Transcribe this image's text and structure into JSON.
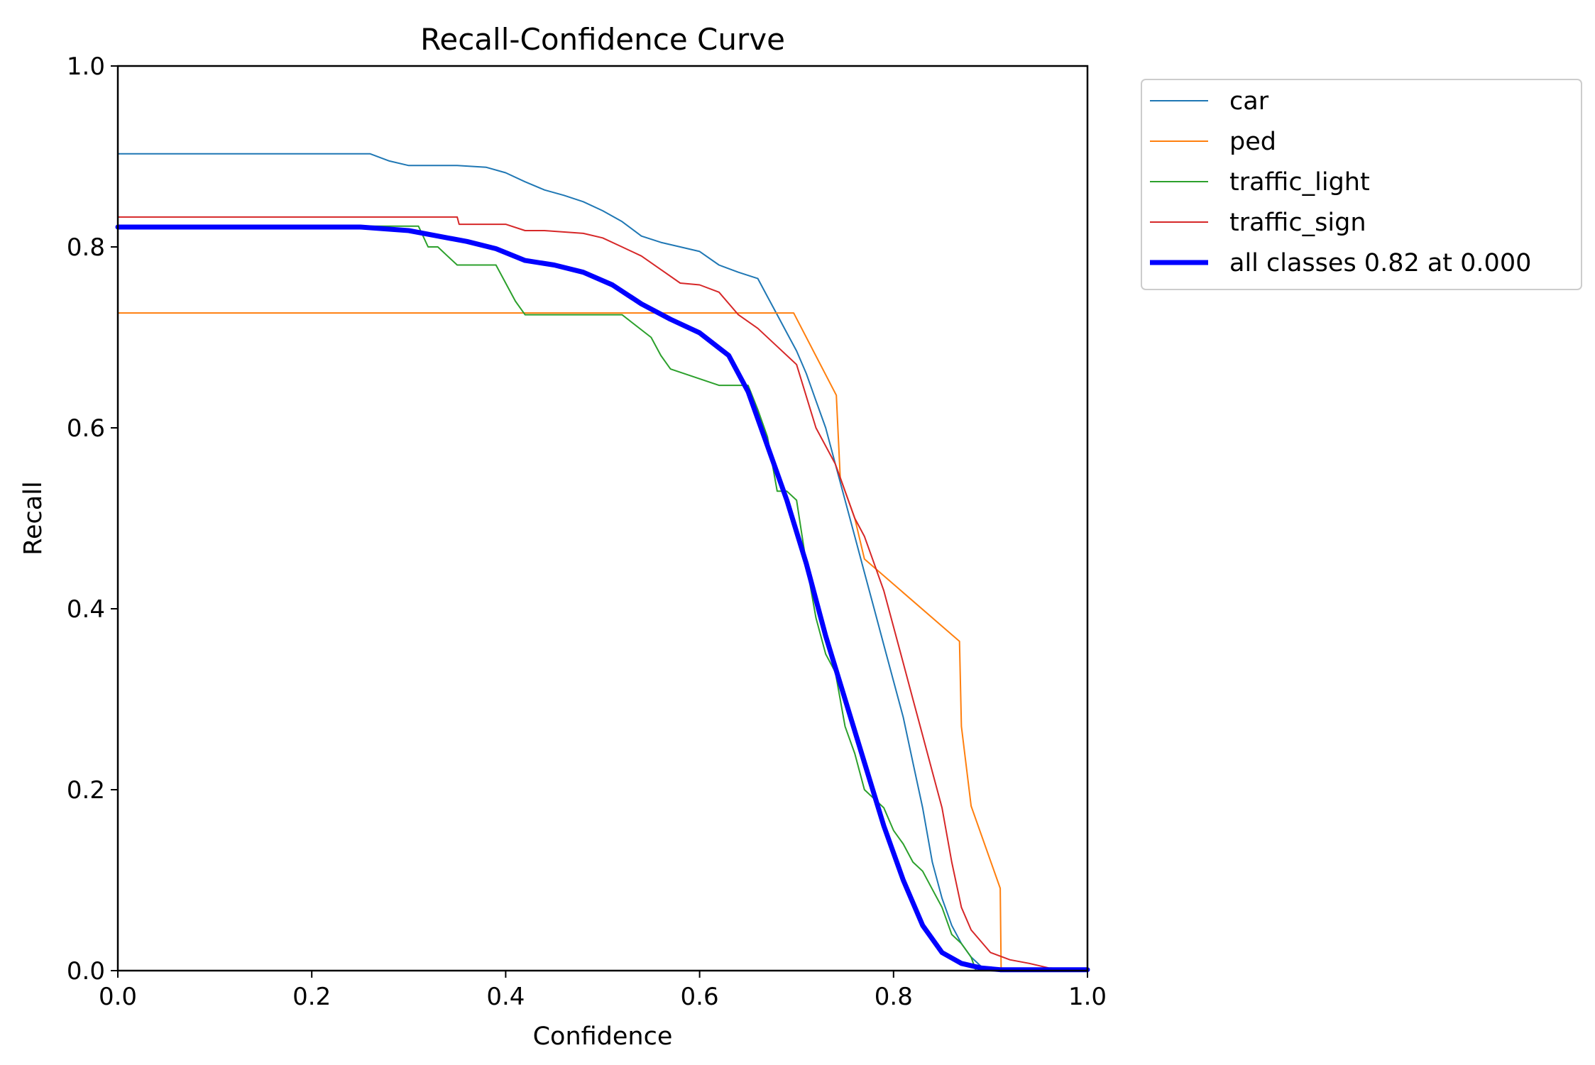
{
  "chart_data": {
    "type": "line",
    "title": "Recall-Confidence Curve",
    "xlabel": "Confidence",
    "ylabel": "Recall",
    "xlim": [
      0,
      1
    ],
    "ylim": [
      0,
      1
    ],
    "xticks": [
      "0.0",
      "0.2",
      "0.4",
      "0.6",
      "0.8",
      "1.0"
    ],
    "yticks": [
      "0.0",
      "0.2",
      "0.4",
      "0.6",
      "0.8",
      "1.0"
    ],
    "grid": false,
    "legend_position": "outside-top-right",
    "series": [
      {
        "name": "car",
        "color": "#1f77b4",
        "width": 2,
        "x": [
          0,
          0.26,
          0.28,
          0.3,
          0.32,
          0.35,
          0.38,
          0.4,
          0.42,
          0.44,
          0.46,
          0.48,
          0.5,
          0.52,
          0.54,
          0.56,
          0.58,
          0.6,
          0.62,
          0.64,
          0.66,
          0.67,
          0.68,
          0.69,
          0.7,
          0.71,
          0.72,
          0.73,
          0.74,
          0.75,
          0.76,
          0.77,
          0.78,
          0.79,
          0.8,
          0.81,
          0.82,
          0.83,
          0.84,
          0.85,
          0.86,
          0.87,
          0.88,
          0.89,
          0.9,
          0.92,
          0.95,
          1.0
        ],
        "y": [
          0.903,
          0.903,
          0.895,
          0.89,
          0.89,
          0.89,
          0.888,
          0.882,
          0.872,
          0.863,
          0.857,
          0.85,
          0.84,
          0.828,
          0.812,
          0.805,
          0.8,
          0.795,
          0.78,
          0.772,
          0.765,
          0.745,
          0.725,
          0.705,
          0.685,
          0.66,
          0.63,
          0.6,
          0.56,
          0.52,
          0.48,
          0.44,
          0.4,
          0.36,
          0.32,
          0.28,
          0.23,
          0.18,
          0.12,
          0.08,
          0.05,
          0.03,
          0.015,
          0.005,
          0.002,
          0.001,
          0.001,
          0.001
        ]
      },
      {
        "name": "ped",
        "color": "#ff7f0e",
        "width": 2,
        "x": [
          0,
          0.697,
          0.741,
          0.745,
          0.76,
          0.77,
          0.868,
          0.87,
          0.88,
          0.91,
          0.911,
          0.913,
          1.0
        ],
        "y": [
          0.727,
          0.727,
          0.636,
          0.545,
          0.5,
          0.455,
          0.364,
          0.27,
          0.182,
          0.091,
          0.0,
          0.0,
          0.0
        ]
      },
      {
        "name": "traffic_light",
        "color": "#2ca02c",
        "width": 2,
        "x": [
          0,
          0.31,
          0.32,
          0.33,
          0.34,
          0.35,
          0.36,
          0.39,
          0.4,
          0.41,
          0.42,
          0.44,
          0.48,
          0.52,
          0.55,
          0.56,
          0.57,
          0.62,
          0.65,
          0.66,
          0.67,
          0.68,
          0.69,
          0.7,
          0.71,
          0.72,
          0.73,
          0.74,
          0.75,
          0.76,
          0.77,
          0.78,
          0.79,
          0.8,
          0.81,
          0.82,
          0.83,
          0.84,
          0.85,
          0.86,
          0.87,
          0.88,
          0.885,
          0.89,
          1.0
        ],
        "y": [
          0.823,
          0.823,
          0.8,
          0.8,
          0.79,
          0.78,
          0.78,
          0.78,
          0.76,
          0.74,
          0.725,
          0.725,
          0.725,
          0.725,
          0.7,
          0.68,
          0.665,
          0.647,
          0.647,
          0.62,
          0.59,
          0.53,
          0.53,
          0.52,
          0.45,
          0.39,
          0.35,
          0.33,
          0.27,
          0.24,
          0.2,
          0.19,
          0.18,
          0.155,
          0.14,
          0.12,
          0.11,
          0.09,
          0.07,
          0.04,
          0.03,
          0.015,
          0.0,
          0.0,
          0.0
        ]
      },
      {
        "name": "traffic_sign",
        "color": "#d62728",
        "width": 2,
        "x": [
          0,
          0.35,
          0.352,
          0.37,
          0.4,
          0.42,
          0.44,
          0.48,
          0.5,
          0.52,
          0.54,
          0.56,
          0.58,
          0.6,
          0.62,
          0.64,
          0.66,
          0.68,
          0.7,
          0.72,
          0.74,
          0.75,
          0.76,
          0.77,
          0.78,
          0.79,
          0.8,
          0.81,
          0.82,
          0.83,
          0.84,
          0.85,
          0.86,
          0.87,
          0.88,
          0.9,
          0.92,
          0.94,
          0.96,
          1.0
        ],
        "y": [
          0.833,
          0.833,
          0.825,
          0.825,
          0.825,
          0.818,
          0.818,
          0.815,
          0.81,
          0.8,
          0.79,
          0.775,
          0.76,
          0.758,
          0.75,
          0.725,
          0.71,
          0.69,
          0.67,
          0.6,
          0.56,
          0.53,
          0.5,
          0.48,
          0.45,
          0.42,
          0.38,
          0.34,
          0.3,
          0.26,
          0.22,
          0.18,
          0.12,
          0.07,
          0.045,
          0.02,
          0.012,
          0.008,
          0.003,
          0.001
        ]
      },
      {
        "name": "all classes 0.82 at 0.000",
        "color": "#0000ff",
        "width": 7,
        "x": [
          0,
          0.1,
          0.2,
          0.25,
          0.3,
          0.33,
          0.36,
          0.39,
          0.42,
          0.45,
          0.48,
          0.51,
          0.54,
          0.57,
          0.6,
          0.63,
          0.65,
          0.67,
          0.69,
          0.71,
          0.73,
          0.75,
          0.77,
          0.79,
          0.81,
          0.83,
          0.85,
          0.87,
          0.89,
          0.91,
          0.93,
          0.95,
          1.0
        ],
        "y": [
          0.822,
          0.822,
          0.822,
          0.822,
          0.818,
          0.812,
          0.806,
          0.798,
          0.785,
          0.78,
          0.772,
          0.758,
          0.737,
          0.72,
          0.705,
          0.68,
          0.64,
          0.58,
          0.52,
          0.45,
          0.37,
          0.3,
          0.23,
          0.16,
          0.1,
          0.05,
          0.02,
          0.008,
          0.003,
          0.001,
          0.001,
          0.001,
          0.001
        ]
      }
    ]
  }
}
